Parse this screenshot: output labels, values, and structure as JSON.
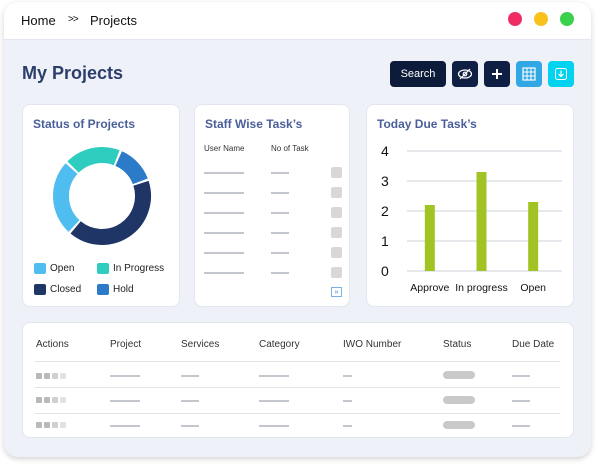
{
  "breadcrumb": {
    "home": "Home",
    "separator": ">>",
    "current": "Projects"
  },
  "window_controls": {
    "colors": [
      "#ef2d64",
      "#f9c21b",
      "#3ad14c"
    ]
  },
  "page_title": "My Projects",
  "toolbar": {
    "search_label": "Search",
    "buttons": [
      {
        "icon": "eye-slash-icon",
        "color": "#0f1f44"
      },
      {
        "icon": "plus-icon",
        "color": "#0f1f44"
      },
      {
        "icon": "table-icon",
        "color": "#31a8e4"
      },
      {
        "icon": "download-icon",
        "color": "#00d3f0"
      }
    ]
  },
  "status_card": {
    "title": "Status of Projects",
    "legend": [
      {
        "label": "Open",
        "color": "#4fbdf0"
      },
      {
        "label": "In Progress",
        "color": "#2ecdc0"
      },
      {
        "label": "Closed",
        "color": "#1e3566"
      },
      {
        "label": "Hold",
        "color": "#2b7bc8"
      }
    ]
  },
  "staff_card": {
    "title": "Staff Wise Task’s",
    "col_user": "User Name",
    "col_count": "No of Task",
    "more_label": "»"
  },
  "due_card": {
    "title": "Today Due Task’s"
  },
  "chart_data": {
    "type": "bar",
    "categories": [
      "Approve",
      "In progress",
      "Open"
    ],
    "values": [
      2.2,
      3.3,
      2.3
    ],
    "ylim": [
      0,
      4
    ],
    "yticks": [
      "4",
      "3",
      "2",
      "1",
      "0"
    ],
    "grid": true,
    "bar_color": "#a1c424"
  },
  "table": {
    "headers": [
      "Actions",
      "Project",
      "Services",
      "Category",
      "IWO Number",
      "Status",
      "Due Date"
    ]
  }
}
